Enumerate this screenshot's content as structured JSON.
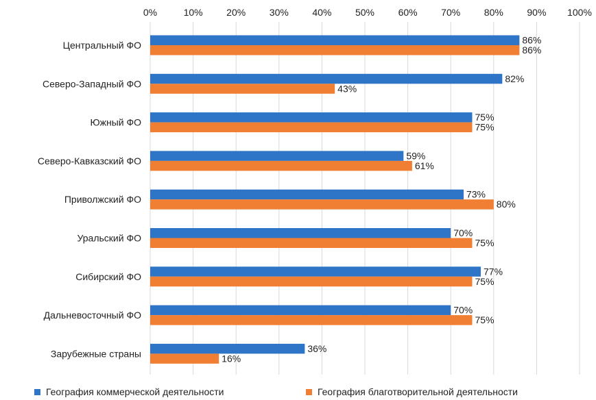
{
  "chart_data": {
    "type": "bar",
    "orientation": "horizontal",
    "categories": [
      "Центральный ФО",
      "Северо-Западный ФО",
      "Южный ФО",
      "Северо-Кавказский ФО",
      "Приволжский ФО",
      "Уральский ФО",
      "Сибирский ФО",
      "Дальневосточный ФО",
      "Зарубежные страны"
    ],
    "series": [
      {
        "name": "География коммерческой деятельности",
        "color": "#2e75c8",
        "values": [
          86,
          82,
          75,
          59,
          73,
          70,
          77,
          70,
          36
        ]
      },
      {
        "name": "География благотворительной деятельности",
        "color": "#f07f33",
        "values": [
          86,
          43,
          75,
          61,
          80,
          75,
          75,
          75,
          16
        ]
      }
    ],
    "x_ticks": [
      "0%",
      "10%",
      "20%",
      "30%",
      "40%",
      "50%",
      "60%",
      "70%",
      "80%",
      "90%",
      "100%"
    ],
    "xlim": [
      0,
      100
    ],
    "value_suffix": "%",
    "xaxis_position": "top",
    "grid": true,
    "legend_position": "bottom"
  }
}
